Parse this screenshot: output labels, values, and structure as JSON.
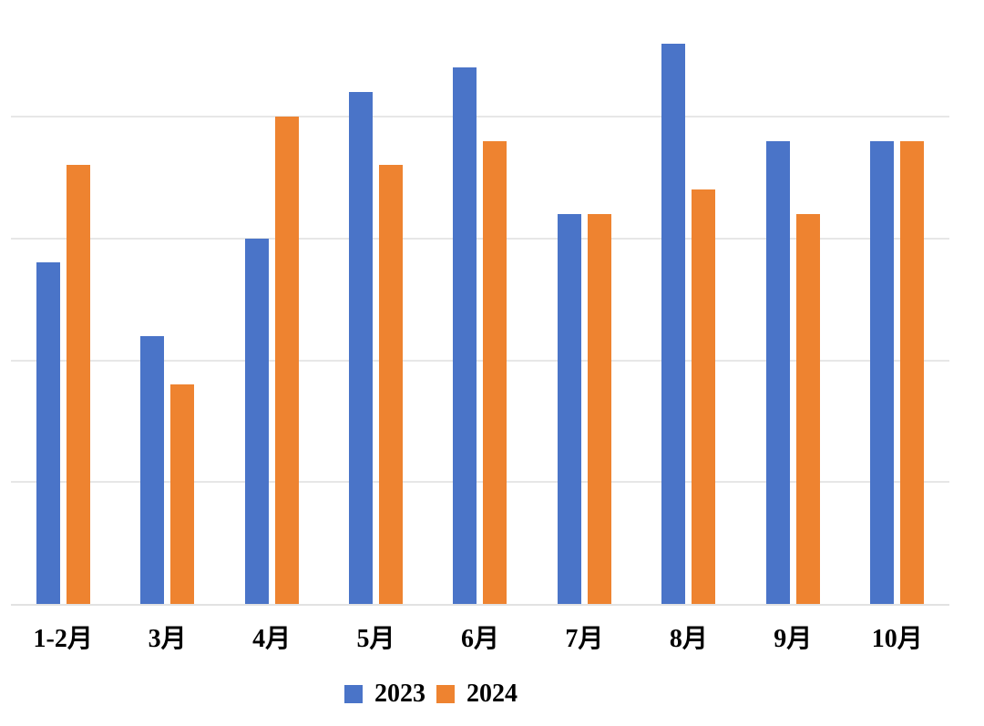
{
  "chart_data": {
    "type": "bar",
    "title": "",
    "xlabel": "",
    "ylabel": "",
    "categories": [
      "1-2月",
      "3月",
      "4月",
      "5月",
      "6月",
      "7月",
      "8月",
      "9月",
      "10月"
    ],
    "series": [
      {
        "name": "2023",
        "color": "#4A74C8",
        "values": [
          14,
          11,
          15,
          21,
          22,
          16,
          23,
          19,
          19
        ]
      },
      {
        "name": "2024",
        "color": "#EE8330",
        "values": [
          18,
          9,
          20,
          18,
          19,
          16,
          17,
          16,
          19
        ]
      }
    ],
    "ylim": [
      0,
      25
    ],
    "gridline_values": [
      5,
      10,
      15,
      20
    ],
    "grid": true,
    "value_axis_labels_visible": false,
    "legend_position": "bottom"
  },
  "legend": {
    "items": [
      {
        "label": "2023",
        "color": "#4A74C8"
      },
      {
        "label": "2024",
        "color": "#EE8330"
      }
    ]
  },
  "colors": {
    "background": "#FFFFFF",
    "gridline": "#E7E7E7",
    "axis_line": "#E2E2E2",
    "label_text": "#000000"
  }
}
